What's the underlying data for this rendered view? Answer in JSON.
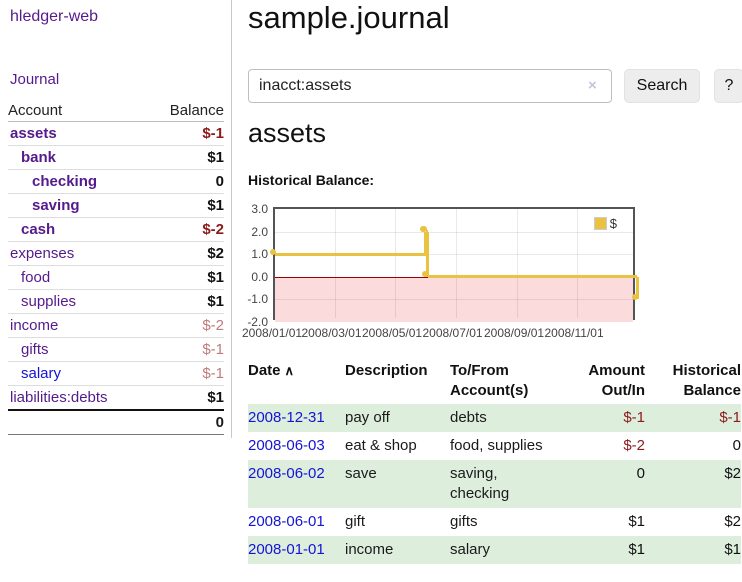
{
  "colors": {
    "link_purple": "#551a8b",
    "link_blue": "#1414d6",
    "text_dark": "#111111",
    "negative_dark": "#8b1a1a",
    "negative_rose": "#bf7b7b",
    "row_green": "#ddeedd",
    "chart_gold": "#e8c240",
    "chart_pink": "#fbdbdb",
    "zero_red": "#990000"
  },
  "sidebar": {
    "brand": "hledger-web",
    "nav_journal": "Journal",
    "headers": {
      "account": "Account",
      "balance": "Balance"
    },
    "accounts": [
      {
        "name": "assets",
        "indent": 0,
        "bold": true,
        "name_color": "link_purple",
        "balance": "$-1",
        "balance_color": "negative_dark",
        "balance_bold": true
      },
      {
        "name": "bank",
        "indent": 1,
        "bold": true,
        "name_color": "link_purple",
        "balance": "$1",
        "balance_color": "text_dark",
        "balance_bold": true
      },
      {
        "name": "checking",
        "indent": 2,
        "bold": true,
        "name_color": "link_purple",
        "balance": "0",
        "balance_color": "text_dark",
        "balance_bold": true
      },
      {
        "name": "saving",
        "indent": 2,
        "bold": true,
        "name_color": "link_purple",
        "balance": "$1",
        "balance_color": "text_dark",
        "balance_bold": true
      },
      {
        "name": "cash",
        "indent": 1,
        "bold": true,
        "name_color": "link_purple",
        "balance": "$-2",
        "balance_color": "negative_dark",
        "balance_bold": true
      },
      {
        "name": "expenses",
        "indent": 0,
        "bold": false,
        "name_color": "link_purple",
        "balance": "$2",
        "balance_color": "text_dark",
        "balance_bold": true
      },
      {
        "name": "food",
        "indent": 1,
        "bold": false,
        "name_color": "link_purple",
        "balance": "$1",
        "balance_color": "text_dark",
        "balance_bold": true
      },
      {
        "name": "supplies",
        "indent": 1,
        "bold": false,
        "name_color": "link_purple",
        "balance": "$1",
        "balance_color": "text_dark",
        "balance_bold": true
      },
      {
        "name": "income",
        "indent": 0,
        "bold": false,
        "name_color": "link_purple",
        "balance": "$-2",
        "balance_color": "negative_rose",
        "balance_bold": false
      },
      {
        "name": "gifts",
        "indent": 1,
        "bold": false,
        "name_color": "link_purple",
        "balance": "$-1",
        "balance_color": "negative_rose",
        "balance_bold": false
      },
      {
        "name": "salary",
        "indent": 1,
        "bold": false,
        "name_color": "link_blue",
        "balance": "$-1",
        "balance_color": "negative_rose",
        "balance_bold": false
      },
      {
        "name": "liabilities:debts",
        "indent": 0,
        "bold": false,
        "name_color": "link_purple",
        "balance": "$1",
        "balance_color": "text_dark",
        "balance_bold": true
      }
    ],
    "total": "0"
  },
  "main": {
    "title": "sample.journal",
    "search": {
      "value": "inacct:assets",
      "clear_icon": "×",
      "button_label": "Search",
      "help_label": "?"
    },
    "section_title": "assets",
    "chart_label": "Historical Balance:"
  },
  "chart_data": {
    "type": "line",
    "title": "Historical Balance",
    "step": true,
    "x_range": [
      "2008-01-01",
      "2008-12-31"
    ],
    "ylim": [
      -2,
      3
    ],
    "series": [
      {
        "name": "$",
        "color": "#e8c240",
        "points": [
          [
            "2008-01-01",
            1
          ],
          [
            "2008-06-01",
            2
          ],
          [
            "2008-06-02",
            2
          ],
          [
            "2008-06-03",
            0
          ],
          [
            "2008-12-31",
            -1
          ]
        ]
      }
    ],
    "x_ticks": [
      "2008/01/01",
      "2008/03/01",
      "2008/05/01",
      "2008/07/01",
      "2008/09/01",
      "2008/11/01"
    ],
    "y_ticks": [
      "3.0",
      "2.0",
      "1.0",
      "0.0",
      "-1.0",
      "-2.0"
    ],
    "grid": true,
    "negative_region": true,
    "legend": {
      "label": "$",
      "position": "top-right"
    }
  },
  "register": {
    "headers": {
      "date": "Date",
      "sort_icon": "∧",
      "description": "Description",
      "to_from_line1": "To/From",
      "to_from_line2": "Account(s)",
      "amount_line1": "Amount",
      "amount_line2": "Out/In",
      "historical_line1": "Historical",
      "historical_line2": "Balance"
    },
    "rows": [
      {
        "date": "2008-12-31",
        "description": "pay off",
        "accounts": "debts",
        "amount": "$-1",
        "amount_color": "negative_dark",
        "historical": "$-1",
        "historical_color": "negative_dark",
        "shaded": true
      },
      {
        "date": "2008-06-03",
        "description": "eat & shop",
        "accounts": "food, supplies",
        "amount": "$-2",
        "amount_color": "negative_dark",
        "historical": "0",
        "historical_color": "text_dark",
        "shaded": false
      },
      {
        "date": "2008-06-02",
        "description": "save",
        "accounts": "saving, checking",
        "amount": "0",
        "amount_color": "text_dark",
        "historical": "$2",
        "historical_color": "text_dark",
        "shaded": true
      },
      {
        "date": "2008-06-01",
        "description": "gift",
        "accounts": "gifts",
        "amount": "$1",
        "amount_color": "text_dark",
        "historical": "$2",
        "historical_color": "text_dark",
        "shaded": false
      },
      {
        "date": "2008-01-01",
        "description": "income",
        "accounts": "salary",
        "amount": "$1",
        "amount_color": "text_dark",
        "historical": "$1",
        "historical_color": "text_dark",
        "shaded": true
      }
    ]
  }
}
